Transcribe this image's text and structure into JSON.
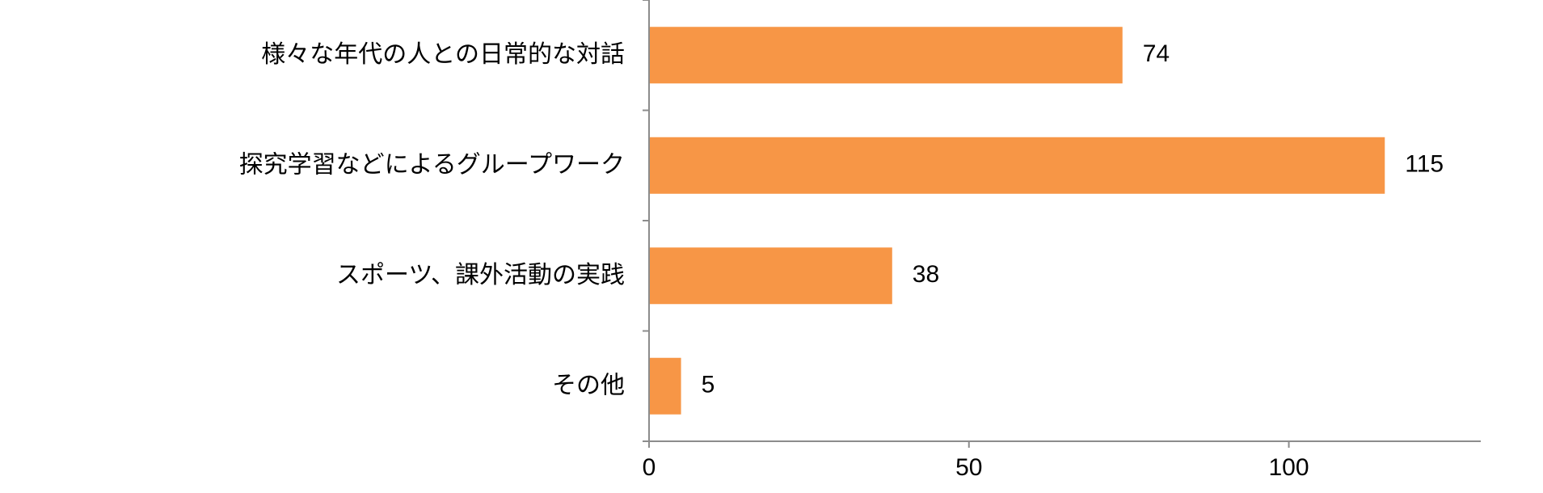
{
  "chart_data": {
    "type": "bar",
    "orientation": "horizontal",
    "categories": [
      "様々な年代の人との日常的な対話",
      "探究学習などによるグループワーク",
      "スポーツ、課外活動の実践",
      "その他"
    ],
    "values": [
      74,
      115,
      38,
      5
    ],
    "xlim": [
      0,
      130
    ],
    "xticks": [
      0,
      50,
      100
    ],
    "xtick_labels": [
      "0",
      "50",
      "100"
    ],
    "data_labels": [
      "74",
      "115",
      "38",
      "5"
    ],
    "bar_color": "#f79646",
    "axis_color": "#8c8c8c",
    "grid": false,
    "legend": "none"
  }
}
